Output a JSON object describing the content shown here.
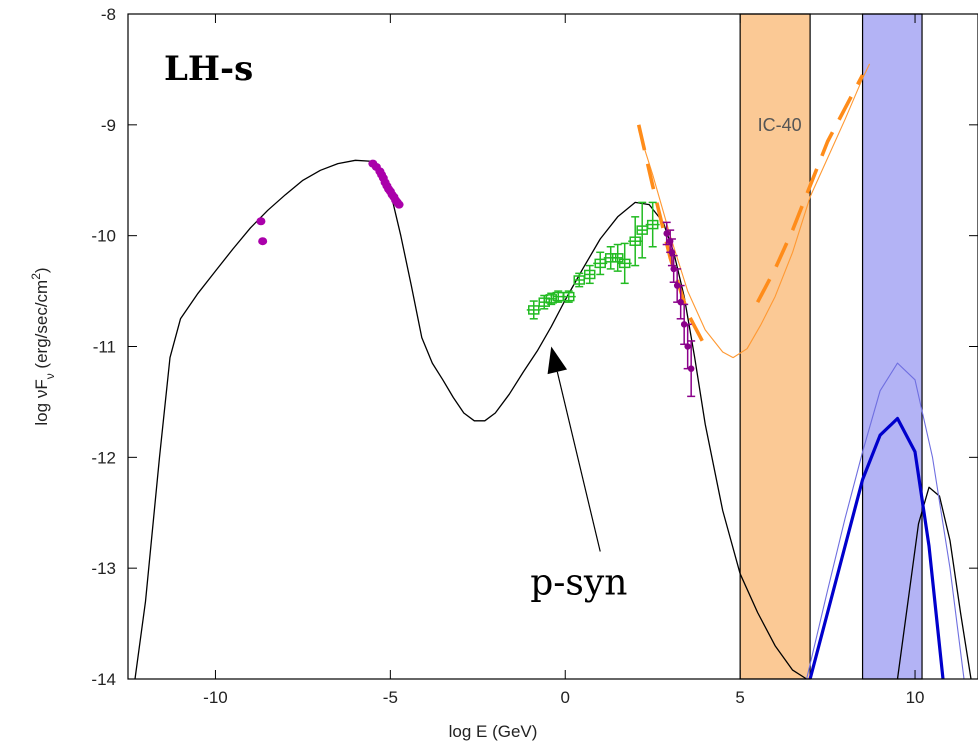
{
  "chart_data": {
    "type": "line",
    "xlabel": "log E (GeV)",
    "ylabel": "log νF",
    "ylabel_sub": "ν",
    "ylabel_unit_pre": " (erg/sec/cm",
    "ylabel_unit_sup": "2",
    "ylabel_unit_post": ")",
    "xlim": [
      -12.5,
      11.8
    ],
    "ylim": [
      -14,
      -8
    ],
    "xticks": [
      -10,
      -5,
      0,
      5,
      10
    ],
    "yticks": [
      -14,
      -13,
      -12,
      -11,
      -10,
      -9,
      -8
    ],
    "xtick_labels": [
      "-10",
      "-5",
      "0",
      "5",
      "10"
    ],
    "ytick_labels": [
      "-14",
      "-13",
      "-12",
      "-11",
      "-10",
      "-9",
      "-8"
    ],
    "grid": false,
    "labels": {
      "model": "LH-s",
      "annotation": "p-syn",
      "band": "IC-40"
    },
    "colors": {
      "sed_model": "#000000",
      "optical_points": "#aa00aa",
      "xray_points": "#22bb22",
      "tev_points": "#8a008a",
      "neutrino_limit": "#ff8c1a",
      "neutrino_thin": "#ff9933",
      "band_orange": "#fbc995",
      "band_blue": "#b3b3f5",
      "neutrino_blue": "#0000cc",
      "neutrino_blue_thin": "#6f6fe0"
    },
    "bands": [
      {
        "xmin": 5.0,
        "xmax": 7.0,
        "color": "#fbc995"
      },
      {
        "xmin": 8.5,
        "xmax": 10.2,
        "color": "#b3b3f5"
      }
    ],
    "series": [
      {
        "style": "black-thin",
        "x": [
          -12.3,
          -12.0,
          -11.6,
          -11.3,
          -11.0,
          -10.5,
          -10.0,
          -9.5,
          -9.0,
          -8.5,
          -8.0,
          -7.5,
          -7.0,
          -6.5,
          -6.0,
          -5.5,
          -5.2,
          -5.0,
          -4.7,
          -4.4,
          -4.1,
          -3.8,
          -3.5,
          -3.2,
          -2.9,
          -2.6,
          -2.3,
          -2.0,
          -1.6,
          -1.2,
          -0.8,
          -0.4,
          0.0,
          0.5,
          1.0,
          1.5,
          2.0,
          2.4,
          2.8,
          3.1,
          3.4,
          3.7,
          4.0,
          4.5,
          5.0,
          5.5,
          6.0,
          6.5,
          6.9
        ],
        "y": [
          -14.0,
          -13.3,
          -12.0,
          -11.1,
          -10.75,
          -10.52,
          -10.32,
          -10.12,
          -9.93,
          -9.77,
          -9.63,
          -9.5,
          -9.41,
          -9.35,
          -9.32,
          -9.33,
          -9.42,
          -9.6,
          -10.0,
          -10.45,
          -10.92,
          -11.15,
          -11.3,
          -11.46,
          -11.6,
          -11.67,
          -11.67,
          -11.6,
          -11.43,
          -11.23,
          -11.04,
          -10.82,
          -10.58,
          -10.3,
          -10.03,
          -9.83,
          -9.7,
          -9.72,
          -9.88,
          -10.15,
          -10.55,
          -11.1,
          -11.7,
          -12.48,
          -13.05,
          -13.4,
          -13.7,
          -13.92,
          -14.0
        ]
      },
      {
        "style": "black-thin",
        "x": [
          9.5,
          9.8,
          10.1,
          10.4,
          10.7,
          11.0,
          11.3,
          11.6
        ],
        "y": [
          -14.0,
          -13.3,
          -12.6,
          -12.27,
          -12.35,
          -12.75,
          -13.4,
          -14.0
        ]
      },
      {
        "style": "orange-thin",
        "x": [
          2.1,
          2.5,
          3.0,
          3.5,
          4.0,
          4.5,
          4.8,
          5.2,
          5.6,
          6.0,
          6.5,
          7.0,
          7.5,
          8.0,
          8.5,
          8.7
        ],
        "y": [
          -9.05,
          -9.45,
          -10.0,
          -10.5,
          -10.85,
          -11.05,
          -11.1,
          -11.02,
          -10.8,
          -10.55,
          -10.15,
          -9.65,
          -9.3,
          -8.95,
          -8.58,
          -8.45
        ]
      },
      {
        "style": "orange-dashed",
        "x": [
          2.1,
          2.5,
          3.0,
          3.5,
          4.0,
          4.1
        ],
        "y": [
          -9.0,
          -9.55,
          -10.2,
          -10.7,
          -11.0,
          -11.05
        ]
      },
      {
        "style": "orange-dashed",
        "x": [
          5.5,
          6.0,
          6.5,
          7.0,
          7.5,
          8.0,
          8.5
        ],
        "y": [
          -10.6,
          -10.3,
          -9.95,
          -9.55,
          -9.15,
          -8.85,
          -8.55
        ]
      },
      {
        "style": "blue-thin",
        "x": [
          6.9,
          7.5,
          8.0,
          8.5,
          9.0,
          9.5,
          10.0,
          10.5,
          11.0,
          11.4
        ],
        "y": [
          -14.0,
          -13.2,
          -12.55,
          -11.95,
          -11.4,
          -11.15,
          -11.3,
          -12.0,
          -13.0,
          -14.0
        ]
      },
      {
        "style": "blue-thick",
        "x": [
          7.0,
          7.5,
          8.0,
          8.5,
          9.0,
          9.5,
          10.0,
          10.4,
          10.8
        ],
        "y": [
          -14.0,
          -13.4,
          -12.8,
          -12.2,
          -11.8,
          -11.65,
          -11.95,
          -12.8,
          -14.0
        ]
      }
    ],
    "points": [
      {
        "name": "optical",
        "style": "dots",
        "x": [
          -8.7,
          -8.65,
          -5.5,
          -5.4,
          -5.3,
          -5.25,
          -5.2,
          -5.15,
          -5.1,
          -5.05,
          -5.0,
          -4.95,
          -4.9,
          -4.85,
          -4.8,
          -4.75
        ],
        "y": [
          -9.87,
          -10.05,
          -9.35,
          -9.38,
          -9.42,
          -9.45,
          -9.48,
          -9.52,
          -9.55,
          -9.58,
          -9.6,
          -9.63,
          -9.65,
          -9.68,
          -9.7,
          -9.72
        ]
      },
      {
        "name": "xray",
        "style": "errorbar",
        "x": [
          -0.9,
          -0.6,
          -0.4,
          -0.2,
          0.1,
          0.4,
          0.7,
          1.0,
          1.3,
          1.5,
          1.7,
          2.0,
          2.2,
          2.5
        ],
        "y": [
          -10.67,
          -10.6,
          -10.57,
          -10.55,
          -10.55,
          -10.4,
          -10.35,
          -10.25,
          -10.2,
          -10.2,
          -10.25,
          -10.05,
          -9.95,
          -9.9
        ],
        "xerr": [
          0.2,
          0.15,
          0.15,
          0.15,
          0.2,
          0.15,
          0.15,
          0.2,
          0.2,
          0.15,
          0.2,
          0.2,
          0.15,
          0.2
        ],
        "yerr": [
          0.08,
          0.06,
          0.05,
          0.05,
          0.05,
          0.06,
          0.08,
          0.1,
          0.1,
          0.12,
          0.18,
          0.22,
          0.25,
          0.2
        ]
      },
      {
        "name": "tev",
        "style": "errorbar",
        "x": [
          2.9,
          3.0,
          3.05,
          3.1,
          3.2,
          3.3,
          3.4,
          3.5,
          3.6
        ],
        "y": [
          -9.98,
          -10.05,
          -10.15,
          -10.3,
          -10.45,
          -10.6,
          -10.8,
          -11.0,
          -11.2
        ],
        "xerr": [
          0.05,
          0.05,
          0.05,
          0.05,
          0.05,
          0.05,
          0.05,
          0.05,
          0.05
        ],
        "yerr": [
          0.1,
          0.1,
          0.12,
          0.12,
          0.15,
          0.15,
          0.18,
          0.2,
          0.25
        ]
      }
    ],
    "arrow": {
      "from": [
        1.0,
        -12.85
      ],
      "to": [
        -0.4,
        -11.0
      ]
    }
  }
}
